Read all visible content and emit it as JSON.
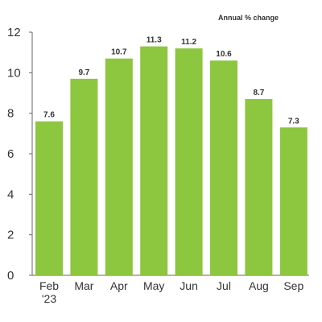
{
  "chart_data": {
    "type": "bar",
    "title": "Annual % change",
    "categories": [
      "Feb '23",
      "Mar",
      "Apr",
      "May",
      "Jun",
      "Jul",
      "Aug",
      "Sep"
    ],
    "category_lines": [
      [
        "Feb",
        "'23"
      ],
      [
        "Mar"
      ],
      [
        "Apr"
      ],
      [
        "May"
      ],
      [
        "Jun"
      ],
      [
        "Jul"
      ],
      [
        "Aug"
      ],
      [
        "Sep"
      ]
    ],
    "values": [
      7.6,
      9.7,
      10.7,
      11.3,
      11.2,
      10.6,
      8.7,
      7.3
    ],
    "value_labels": [
      "7.6",
      "9.7",
      "10.7",
      "11.3",
      "11.2",
      "10.6",
      "8.7",
      "7.3"
    ],
    "ylim": [
      0,
      12
    ],
    "yticks": [
      0,
      2,
      4,
      6,
      8,
      10,
      12
    ],
    "xlabel": "",
    "ylabel": "",
    "grid": false,
    "bar_color": "#8dc63f"
  }
}
